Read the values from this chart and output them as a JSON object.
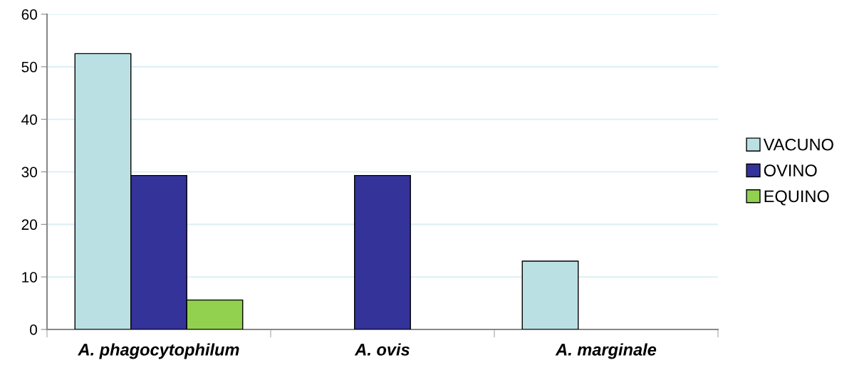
{
  "chart_data": {
    "type": "bar",
    "categories": [
      "A. phagocytophilum",
      "A. ovis",
      "A. marginale"
    ],
    "series": [
      {
        "name": "VACUNO",
        "color": "#bbe0e3",
        "values": [
          52.5,
          null,
          13.0
        ]
      },
      {
        "name": "OVINO",
        "color": "#333399",
        "values": [
          29.3,
          29.3,
          null
        ]
      },
      {
        "name": "EQUINO",
        "color": "#92d050",
        "values": [
          5.6,
          null,
          null
        ]
      }
    ],
    "ylim": [
      0,
      60
    ],
    "yticks": [
      0,
      10,
      20,
      30,
      40,
      50,
      60
    ],
    "grid": "y",
    "legend": "right"
  }
}
